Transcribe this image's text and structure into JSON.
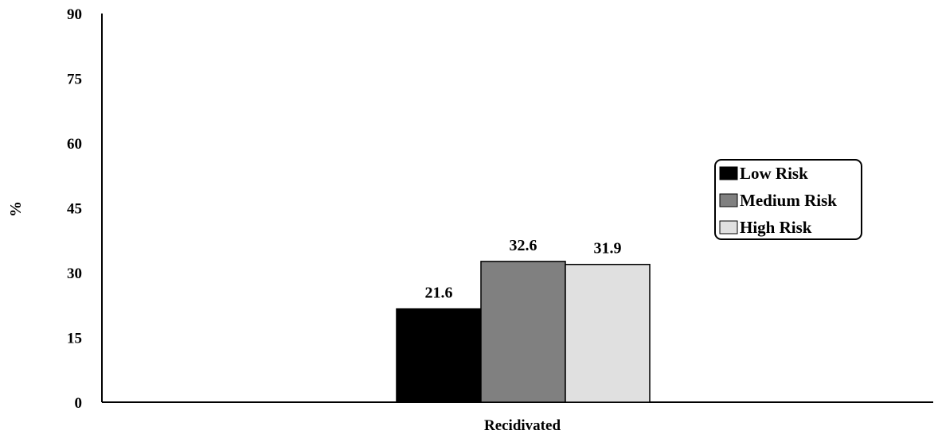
{
  "chart_data": {
    "type": "bar",
    "categories": [
      "Recidivated"
    ],
    "series": [
      {
        "name": "Low Risk",
        "values": [
          21.6
        ],
        "color": "#000000"
      },
      {
        "name": "Medium Risk",
        "values": [
          32.6
        ],
        "color": "#808080"
      },
      {
        "name": "High Risk",
        "values": [
          31.9
        ],
        "color": "#e0e0e0"
      }
    ],
    "data_labels": [
      "21.6",
      "32.6",
      "31.9"
    ],
    "ylabel": "%",
    "xlabel": "",
    "ylim": [
      0,
      90
    ],
    "yticks": [
      "0",
      "15",
      "30",
      "45",
      "60",
      "75",
      "90"
    ],
    "grid": false,
    "legend_position": "right"
  }
}
